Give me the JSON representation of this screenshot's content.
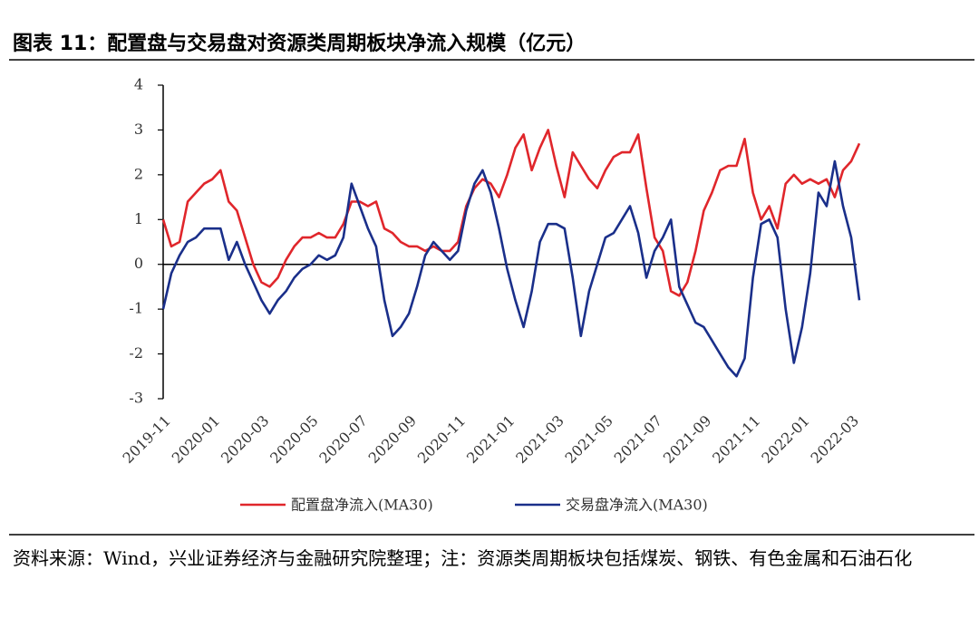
{
  "chart_data": {
    "type": "line",
    "title": "图表 11：配置盘与交易盘对资源类周期板块净流入规模（亿元）",
    "source": "资料来源：Wind，兴业证券经济与金融研究院整理；注：资源类周期板块包括煤炭、钢铁、有色金属和石油石化",
    "categories": [
      "2019-11",
      null,
      null,
      null,
      null,
      null,
      "2020-01",
      null,
      null,
      null,
      null,
      null,
      "2020-03",
      null,
      null,
      null,
      null,
      null,
      "2020-05",
      null,
      null,
      null,
      null,
      null,
      "2020-07",
      null,
      null,
      null,
      null,
      null,
      "2020-09",
      null,
      null,
      null,
      null,
      null,
      "2020-11",
      null,
      null,
      null,
      null,
      null,
      "2021-01",
      null,
      null,
      null,
      null,
      null,
      "2021-03",
      null,
      null,
      null,
      null,
      null,
      "2021-05",
      null,
      null,
      null,
      null,
      null,
      "2021-07",
      null,
      null,
      null,
      null,
      null,
      "2021-09",
      null,
      null,
      null,
      null,
      null,
      "2021-11",
      null,
      null,
      null,
      null,
      null,
      "2022-01",
      null,
      null,
      null,
      null,
      null,
      "2022-03",
      null
    ],
    "series": [
      {
        "name": "配置盘净流入(MA30)",
        "color": "#e0262b",
        "values": [
          1.0,
          0.4,
          0.5,
          1.4,
          1.6,
          1.8,
          1.9,
          2.1,
          1.4,
          1.2,
          0.6,
          0.0,
          -0.4,
          -0.5,
          -0.3,
          0.1,
          0.4,
          0.6,
          0.6,
          0.7,
          0.6,
          0.6,
          0.9,
          1.4,
          1.4,
          1.3,
          1.4,
          0.8,
          0.7,
          0.5,
          0.4,
          0.4,
          0.3,
          0.4,
          0.3,
          0.3,
          0.5,
          1.3,
          1.7,
          1.9,
          1.8,
          1.5,
          2.0,
          2.6,
          2.9,
          2.1,
          2.6,
          3.0,
          2.2,
          1.5,
          2.5,
          2.2,
          1.9,
          1.7,
          2.1,
          2.4,
          2.5,
          2.5,
          2.9,
          1.7,
          0.6,
          0.3,
          -0.6,
          -0.7,
          -0.4,
          0.3,
          1.2,
          1.6,
          2.1,
          2.2,
          2.2,
          2.8,
          1.6,
          1.0,
          1.3,
          0.8,
          1.8,
          2.0,
          1.8,
          1.9,
          1.8,
          1.9,
          1.5,
          2.1,
          2.3,
          2.7
        ]
      },
      {
        "name": "交易盘净流入(MA30)",
        "color": "#1a2f8a",
        "values": [
          -1.0,
          -0.2,
          0.2,
          0.5,
          0.6,
          0.8,
          0.8,
          0.8,
          0.1,
          0.5,
          0.0,
          -0.4,
          -0.8,
          -1.1,
          -0.8,
          -0.6,
          -0.3,
          -0.1,
          0.0,
          0.2,
          0.1,
          0.2,
          0.6,
          1.8,
          1.3,
          0.8,
          0.4,
          -0.8,
          -1.6,
          -1.4,
          -1.1,
          -0.5,
          0.2,
          0.5,
          0.3,
          0.1,
          0.3,
          1.2,
          1.8,
          2.1,
          1.6,
          0.8,
          -0.1,
          -0.8,
          -1.4,
          -0.6,
          0.5,
          0.9,
          0.9,
          0.8,
          -0.3,
          -1.6,
          -0.6,
          0.0,
          0.6,
          0.7,
          1.0,
          1.3,
          0.7,
          -0.3,
          0.3,
          0.6,
          1.0,
          -0.5,
          -0.9,
          -1.3,
          -1.4,
          -1.7,
          -2.0,
          -2.3,
          -2.5,
          -2.1,
          -0.3,
          0.9,
          1.0,
          0.6,
          -1.0,
          -2.2,
          -1.4,
          -0.2,
          1.6,
          1.3,
          2.3,
          1.3,
          0.6,
          -0.8
        ]
      }
    ],
    "ylim": [
      -3,
      4
    ],
    "yticks": [
      -3,
      -2,
      -1,
      0,
      1,
      2,
      3,
      4
    ]
  }
}
